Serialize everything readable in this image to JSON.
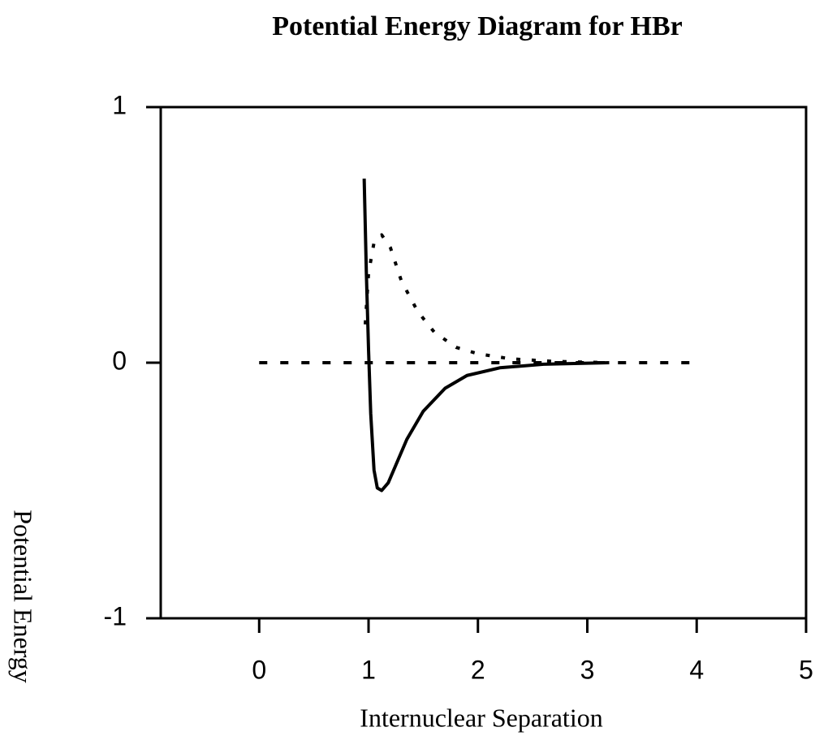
{
  "chart_data": {
    "type": "line",
    "title": "Potential Energy Diagram for HBr",
    "xlabel": "Internuclear Separation",
    "ylabel": "Potential Energy",
    "xlim": [
      -0.9,
      5
    ],
    "ylim": [
      -1,
      1
    ],
    "xticks": [
      0,
      1,
      2,
      3,
      4,
      5
    ],
    "yticks": [
      -1,
      0,
      1
    ],
    "series": [
      {
        "color": "#000000",
        "style": "solid",
        "x": [
          0.96,
          0.98,
          1.0,
          1.02,
          1.05,
          1.08,
          1.12,
          1.18,
          1.25,
          1.35,
          1.5,
          1.7,
          1.9,
          2.2,
          2.6,
          3.2
        ],
        "values": [
          0.72,
          0.35,
          0.05,
          -0.2,
          -0.42,
          -0.49,
          -0.5,
          -0.47,
          -0.4,
          -0.3,
          -0.19,
          -0.1,
          -0.05,
          -0.02,
          -0.006,
          0
        ]
      },
      {
        "color": "#000000",
        "style": "dotted",
        "x": [
          0.97,
          1.0,
          1.05,
          1.12,
          1.2,
          1.3,
          1.45,
          1.6,
          1.8,
          2.0,
          2.3,
          2.7,
          3.2
        ],
        "values": [
          0.15,
          0.35,
          0.47,
          0.5,
          0.45,
          0.32,
          0.2,
          0.12,
          0.06,
          0.035,
          0.015,
          0.005,
          0
        ]
      },
      {
        "color": "#000000",
        "style": "dashed",
        "x": [
          0,
          4
        ],
        "values": [
          0,
          0
        ]
      }
    ]
  }
}
